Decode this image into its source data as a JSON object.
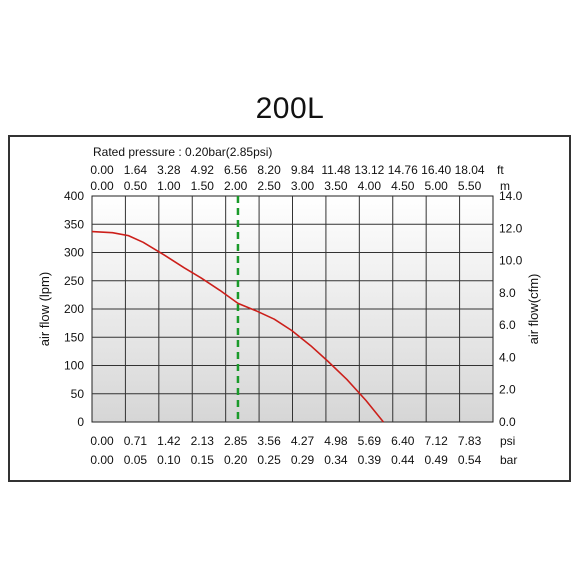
{
  "chart_data": {
    "type": "line",
    "title": "200L",
    "subtitle": "Rated pressure : 0.20bar(2.85psi)",
    "ylabel_left": "air flow (lpm)",
    "ylabel_right": "air flow(cfm)",
    "ylim_left": [
      0,
      400
    ],
    "ylim_right": [
      0,
      14
    ],
    "xlim": [
      0,
      7.83
    ],
    "x_unit_psi": "psi",
    "x_unit_bar": "bar",
    "top_unit_ft": "ft",
    "top_unit_m": "m",
    "left_ticks": [
      "0",
      "50",
      "100",
      "150",
      "200",
      "250",
      "300",
      "350",
      "400"
    ],
    "right_ticks": [
      "0.0",
      "2.0",
      "4.0",
      "6.0",
      "8.0",
      "10.0",
      "12.0",
      "14.0"
    ],
    "psi_ticks": [
      "0.00",
      "0.71",
      "1.42",
      "2.13",
      "2.85",
      "3.56",
      "4.27",
      "4.98",
      "5.69",
      "6.40",
      "7.12",
      "7.83"
    ],
    "bar_ticks": [
      "0.00",
      "0.05",
      "0.10",
      "0.15",
      "0.20",
      "0.25",
      "0.29",
      "0.34",
      "0.39",
      "0.44",
      "0.49",
      "0.54"
    ],
    "ft_ticks": [
      "0.00",
      "1.64",
      "3.28",
      "4.92",
      "6.56",
      "8.20",
      "9.84",
      "11.48",
      "13.12",
      "14.76",
      "16.40",
      "18.04"
    ],
    "m_ticks": [
      "0.00",
      "0.50",
      "1.00",
      "1.50",
      "2.00",
      "2.50",
      "3.00",
      "3.50",
      "4.00",
      "4.50",
      "5.00",
      "5.50"
    ],
    "rated_pressure_psi": 2.85,
    "series": [
      {
        "color": "#cc1f1a",
        "x": [
          0.0,
          0.4,
          0.71,
          1.0,
          1.42,
          1.8,
          2.13,
          2.5,
          2.85,
          3.2,
          3.56,
          3.9,
          4.27,
          4.6,
          4.98,
          5.35,
          5.69
        ],
        "y": [
          337,
          335,
          330,
          318,
          295,
          273,
          255,
          233,
          210,
          197,
          182,
          162,
          135,
          108,
          75,
          38,
          0
        ]
      }
    ],
    "grid": true,
    "rated_line_color": "#1a9a2a"
  }
}
